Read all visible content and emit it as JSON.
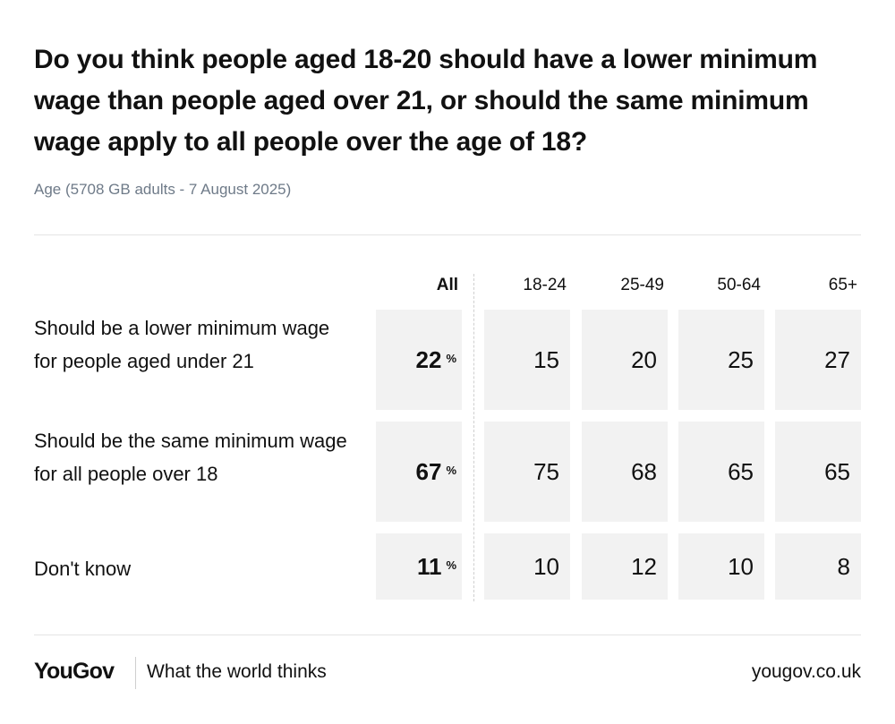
{
  "title": "Do you think people aged 18-20 should have a lower minimum wage than people aged over 21, or should the same minimum wage apply to all people over the age of 18?",
  "subtitle": "Age (5708 GB adults - 7 August 2025)",
  "footer": {
    "logo": "YouGov",
    "tagline": "What the world thinks",
    "site": "yougov.co.uk"
  },
  "colors": {
    "cell_bg": "#f2f2f2",
    "subtitle": "#6e7a88",
    "text": "#111111"
  },
  "chart_data": {
    "type": "table",
    "title": "Do you think people aged 18-20 should have a lower minimum wage than people aged over 21, or should the same minimum wage apply to all people over the age of 18?",
    "subtitle": "Age (5708 GB adults - 7 August 2025)",
    "unit": "%",
    "columns": [
      "All",
      "18-24",
      "25-49",
      "50-64",
      "65+"
    ],
    "rows": [
      {
        "label": "Should be a lower minimum wage for people aged under 21",
        "values": [
          22,
          15,
          20,
          25,
          27
        ]
      },
      {
        "label": "Should be the same minimum wage for all people over 18",
        "values": [
          67,
          75,
          68,
          65,
          65
        ]
      },
      {
        "label": "Don't know",
        "values": [
          11,
          10,
          12,
          10,
          8
        ]
      }
    ]
  }
}
